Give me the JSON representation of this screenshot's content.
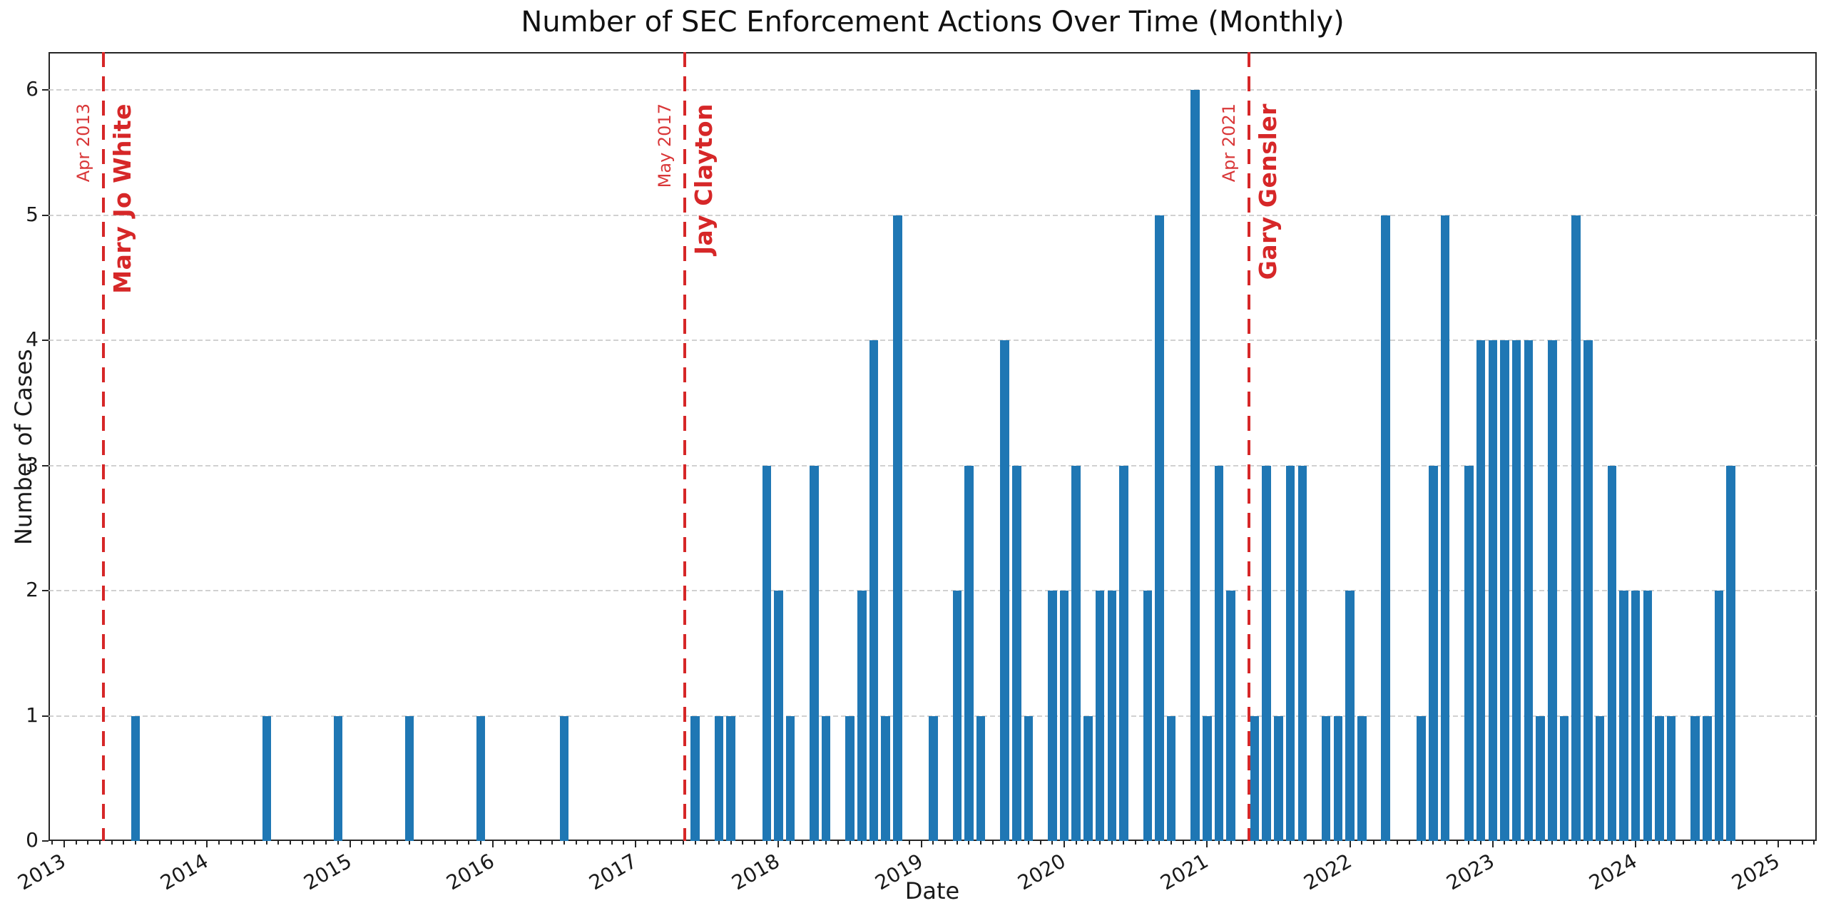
{
  "chart_data": {
    "type": "bar",
    "title": "Number of SEC Enforcement Actions Over Time (Monthly)",
    "xlabel": "Date",
    "ylabel": "Number of Cases",
    "ylim": [
      0,
      6.3
    ],
    "yticks": [
      0,
      1,
      2,
      3,
      4,
      5,
      6
    ],
    "year_ticks": [
      2013,
      2014,
      2015,
      2016,
      2017,
      2018,
      2019,
      2020,
      2021,
      2022,
      2023,
      2024,
      2025
    ],
    "grid": "horizontal-dashed",
    "legend": "none",
    "bar_color": "#1f77b4",
    "annotation_color": "#d62728",
    "grid_color": "#c9c9c9",
    "bars": [
      [
        "2013-07",
        1
      ],
      [
        "2014-06",
        1
      ],
      [
        "2014-12",
        1
      ],
      [
        "2015-06",
        1
      ],
      [
        "2015-12",
        1
      ],
      [
        "2016-07",
        1
      ],
      [
        "2017-06",
        1
      ],
      [
        "2017-08",
        1
      ],
      [
        "2017-09",
        1
      ],
      [
        "2017-12",
        3
      ],
      [
        "2018-01",
        2
      ],
      [
        "2018-02",
        1
      ],
      [
        "2018-04",
        3
      ],
      [
        "2018-05",
        1
      ],
      [
        "2018-07",
        1
      ],
      [
        "2018-08",
        2
      ],
      [
        "2018-09",
        4
      ],
      [
        "2018-10",
        1
      ],
      [
        "2018-11",
        5
      ],
      [
        "2019-02",
        1
      ],
      [
        "2019-04",
        2
      ],
      [
        "2019-05",
        3
      ],
      [
        "2019-06",
        1
      ],
      [
        "2019-08",
        4
      ],
      [
        "2019-09",
        3
      ],
      [
        "2019-10",
        1
      ],
      [
        "2019-12",
        2
      ],
      [
        "2020-01",
        2
      ],
      [
        "2020-02",
        3
      ],
      [
        "2020-03",
        1
      ],
      [
        "2020-04",
        2
      ],
      [
        "2020-05",
        2
      ],
      [
        "2020-06",
        3
      ],
      [
        "2020-08",
        2
      ],
      [
        "2020-09",
        5
      ],
      [
        "2020-10",
        1
      ],
      [
        "2020-12",
        6
      ],
      [
        "2021-01",
        1
      ],
      [
        "2021-02",
        3
      ],
      [
        "2021-03",
        2
      ],
      [
        "2021-05",
        1
      ],
      [
        "2021-06",
        3
      ],
      [
        "2021-07",
        1
      ],
      [
        "2021-08",
        3
      ],
      [
        "2021-09",
        3
      ],
      [
        "2021-11",
        1
      ],
      [
        "2021-12",
        1
      ],
      [
        "2022-01",
        2
      ],
      [
        "2022-02",
        1
      ],
      [
        "2022-04",
        5
      ],
      [
        "2022-07",
        1
      ],
      [
        "2022-08",
        3
      ],
      [
        "2022-09",
        5
      ],
      [
        "2022-11",
        3
      ],
      [
        "2022-12",
        4
      ],
      [
        "2023-01",
        4
      ],
      [
        "2023-02",
        4
      ],
      [
        "2023-03",
        4
      ],
      [
        "2023-04",
        4
      ],
      [
        "2023-05",
        1
      ],
      [
        "2023-06",
        4
      ],
      [
        "2023-07",
        1
      ],
      [
        "2023-08",
        5
      ],
      [
        "2023-09",
        4
      ],
      [
        "2023-10",
        1
      ],
      [
        "2023-11",
        3
      ],
      [
        "2023-12",
        2
      ],
      [
        "2024-01",
        2
      ],
      [
        "2024-02",
        2
      ],
      [
        "2024-03",
        1
      ],
      [
        "2024-04",
        1
      ],
      [
        "2024-06",
        1
      ],
      [
        "2024-07",
        1
      ],
      [
        "2024-08",
        2
      ],
      [
        "2024-09",
        3
      ]
    ],
    "annotations": [
      {
        "line_label": "Apr 2013",
        "name": "Mary Jo White",
        "x_months_from_2013_01": 3.3
      },
      {
        "line_label": "May 2017",
        "name": "Jay Clayton",
        "x_months_from_2013_01": 52.1
      },
      {
        "line_label": "Apr 2021",
        "name": "Gary Gensler",
        "x_months_from_2013_01": 99.5
      }
    ]
  }
}
